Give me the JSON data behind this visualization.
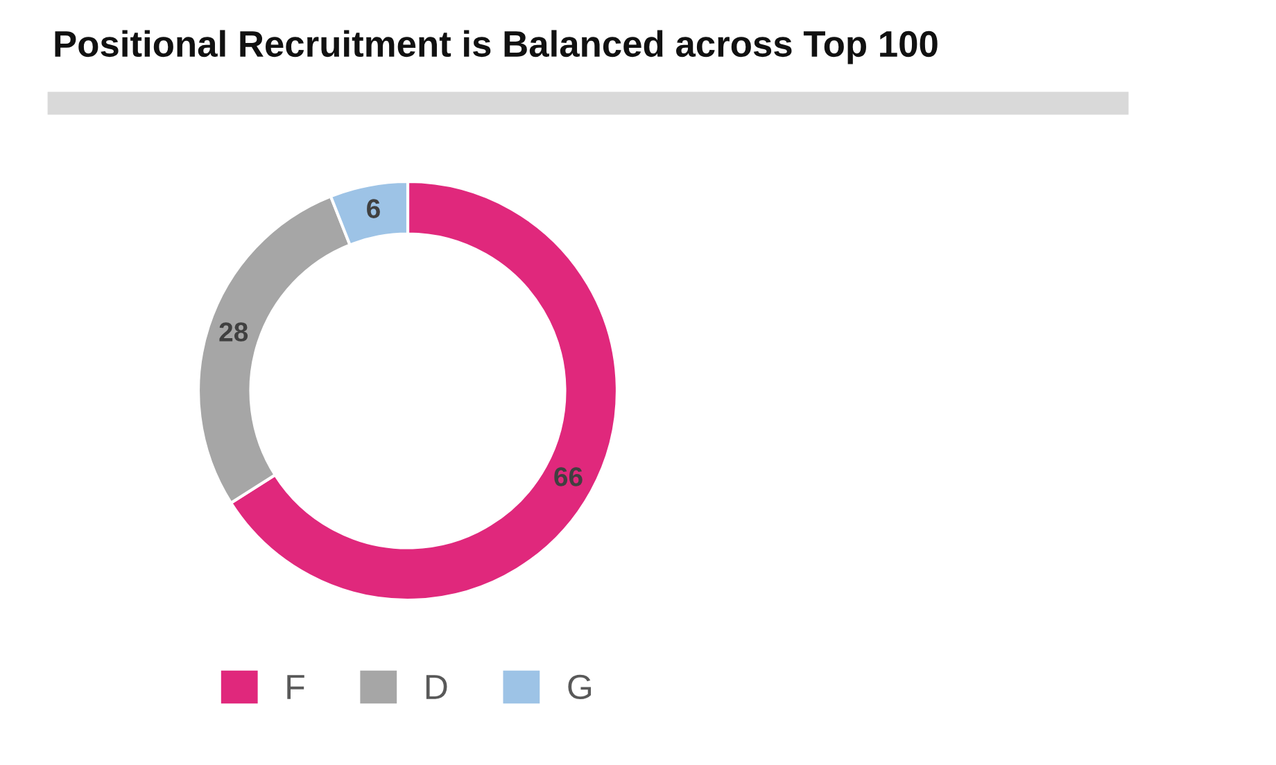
{
  "chart_data": {
    "type": "donut",
    "title": "Positional Recruitment is Balanced across Top 100",
    "categories": [
      "F",
      "D",
      "G"
    ],
    "values": [
      66,
      28,
      6
    ],
    "colors": [
      "#e0287c",
      "#a6a6a6",
      "#9dc3e6"
    ],
    "data_labels": true,
    "legend": "bottom"
  }
}
